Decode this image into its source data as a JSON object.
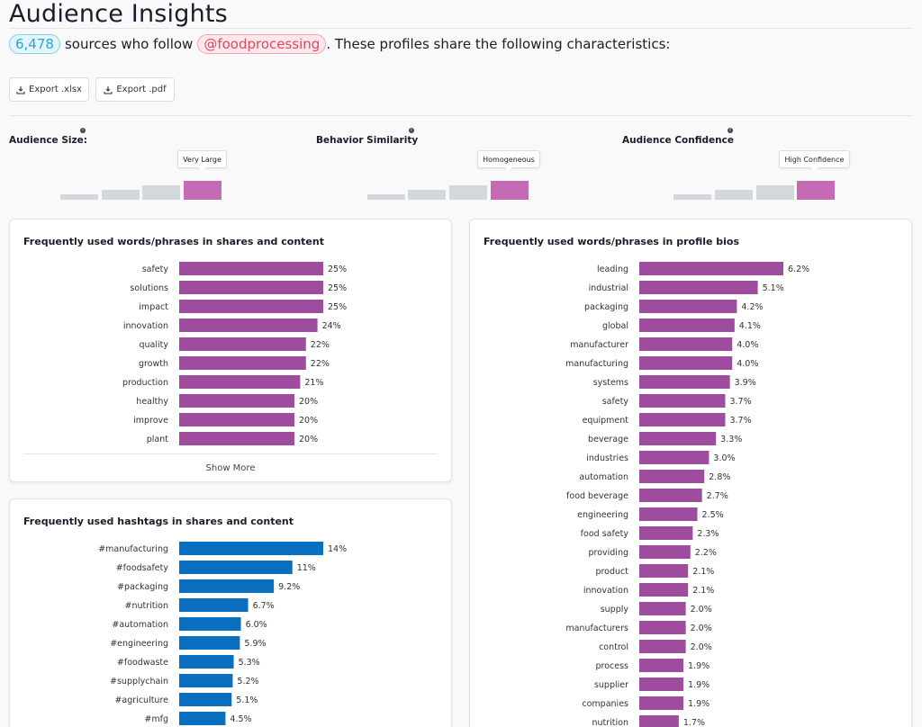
{
  "header": {
    "title": "Audience Insights",
    "count": "6,478",
    "text_before": "sources who follow",
    "handle": "@foodprocessing",
    "text_after": ". These profiles share the following characteristics:"
  },
  "toolbar": {
    "export_xlsx": "Export .xlsx",
    "export_pdf": "Export .pdf"
  },
  "metrics": [
    {
      "label": "Audience Size:",
      "value": "Very Large",
      "level_of_4": 4
    },
    {
      "label": "Behavior Similarity",
      "value": "Homogeneous",
      "level_of_4": 4
    },
    {
      "label": "Audience Confidence",
      "value": "High Confidence",
      "level_of_4": 4
    }
  ],
  "colors": {
    "purple_bar": "#9e4c9e",
    "blue_bar": "#0a6fc0",
    "metric_active": "#c56ab5",
    "metric_inactive": "#d3d8de"
  },
  "cards": {
    "shares_words": {
      "title": "Frequently used words/phrases in shares and content",
      "show_more": "Show More"
    },
    "hashtags": {
      "title": "Frequently used hashtags in shares and content"
    },
    "bios": {
      "title": "Frequently used words/phrases in profile bios"
    }
  },
  "chart_data": [
    {
      "type": "bar",
      "title": "Frequently used words/phrases in shares and content",
      "orientation": "horizontal",
      "categories": [
        "safety",
        "solutions",
        "impact",
        "innovation",
        "quality",
        "growth",
        "production",
        "healthy",
        "improve",
        "plant"
      ],
      "values": [
        25,
        25,
        25,
        24,
        22,
        22,
        21,
        20,
        20,
        20
      ],
      "labels": [
        "25%",
        "25%",
        "25%",
        "24%",
        "22%",
        "22%",
        "21%",
        "20%",
        "20%",
        "20%"
      ],
      "unit": "%",
      "max": 25
    },
    {
      "type": "bar",
      "title": "Frequently used hashtags in shares and content",
      "orientation": "horizontal",
      "categories": [
        "#manufacturing",
        "#foodsafety",
        "#packaging",
        "#nutrition",
        "#automation",
        "#engineering",
        "#foodwaste",
        "#supplychain",
        "#agriculture",
        "#mfg"
      ],
      "values": [
        14,
        11,
        9.2,
        6.7,
        6.0,
        5.9,
        5.3,
        5.2,
        5.1,
        4.5
      ],
      "labels": [
        "14%",
        "11%",
        "9.2%",
        "6.7%",
        "6.0%",
        "5.9%",
        "5.3%",
        "5.2%",
        "5.1%",
        "4.5%"
      ],
      "unit": "%",
      "max": 14
    },
    {
      "type": "bar",
      "title": "Frequently used words/phrases in profile bios",
      "orientation": "horizontal",
      "categories": [
        "leading",
        "industrial",
        "packaging",
        "global",
        "manufacturer",
        "manufacturing",
        "systems",
        "safety",
        "equipment",
        "beverage",
        "industries",
        "automation",
        "food beverage",
        "engineering",
        "food safety",
        "providing",
        "product",
        "innovation",
        "supply",
        "manufacturers",
        "control",
        "process",
        "supplier",
        "companies",
        "nutrition"
      ],
      "values": [
        6.2,
        5.1,
        4.2,
        4.1,
        4.0,
        4.0,
        3.9,
        3.7,
        3.7,
        3.3,
        3.0,
        2.8,
        2.7,
        2.5,
        2.3,
        2.2,
        2.1,
        2.1,
        2.0,
        2.0,
        2.0,
        1.9,
        1.9,
        1.9,
        1.7
      ],
      "labels": [
        "6.2%",
        "5.1%",
        "4.2%",
        "4.1%",
        "4.0%",
        "4.0%",
        "3.9%",
        "3.7%",
        "3.7%",
        "3.3%",
        "3.0%",
        "2.8%",
        "2.7%",
        "2.5%",
        "2.3%",
        "2.2%",
        "2.1%",
        "2.1%",
        "2.0%",
        "2.0%",
        "2.0%",
        "1.9%",
        "1.9%",
        "1.9%",
        "1.7%"
      ],
      "unit": "%",
      "max": 6.2
    }
  ]
}
